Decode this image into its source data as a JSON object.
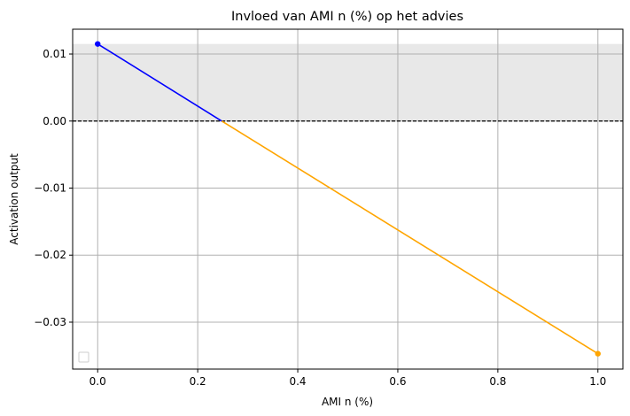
{
  "chart_data": {
    "type": "line",
    "title": "Invloed van AMI n (%) op het advies",
    "xlabel": "AMI n (%)",
    "ylabel": "Activation output",
    "xlim": [
      -0.05,
      1.05
    ],
    "ylim": [
      -0.037,
      0.0137
    ],
    "xticks": [
      0.0,
      0.2,
      0.4,
      0.6,
      0.8,
      1.0
    ],
    "xtick_labels": [
      "0.0",
      "0.2",
      "0.4",
      "0.6",
      "0.8",
      "1.0"
    ],
    "yticks": [
      0.01,
      0.0,
      -0.01,
      -0.02,
      -0.03
    ],
    "ytick_labels": [
      "0.01",
      "0.00",
      "−0.01",
      "−0.02",
      "−0.03"
    ],
    "grid": true,
    "shaded_band": {
      "y0": 0.0,
      "y1": 0.0115,
      "color": "#e8e8e8"
    },
    "reference_line": {
      "y": 0.0,
      "style": "dashed",
      "color": "#000000"
    },
    "series": [
      {
        "color": "#0000ff",
        "points": [
          [
            0.0,
            0.0115
          ],
          [
            0.248,
            0.0
          ]
        ]
      },
      {
        "color": "#ffa500",
        "points": [
          [
            0.248,
            0.0
          ],
          [
            1.0,
            -0.0347
          ]
        ]
      }
    ],
    "markers": [
      {
        "x": 0.0,
        "y": 0.0115,
        "color": "#0000ff"
      },
      {
        "x": 1.0,
        "y": -0.0347,
        "color": "#ffa500"
      }
    ],
    "legend": {
      "placement": "lower-left",
      "entries": []
    }
  }
}
